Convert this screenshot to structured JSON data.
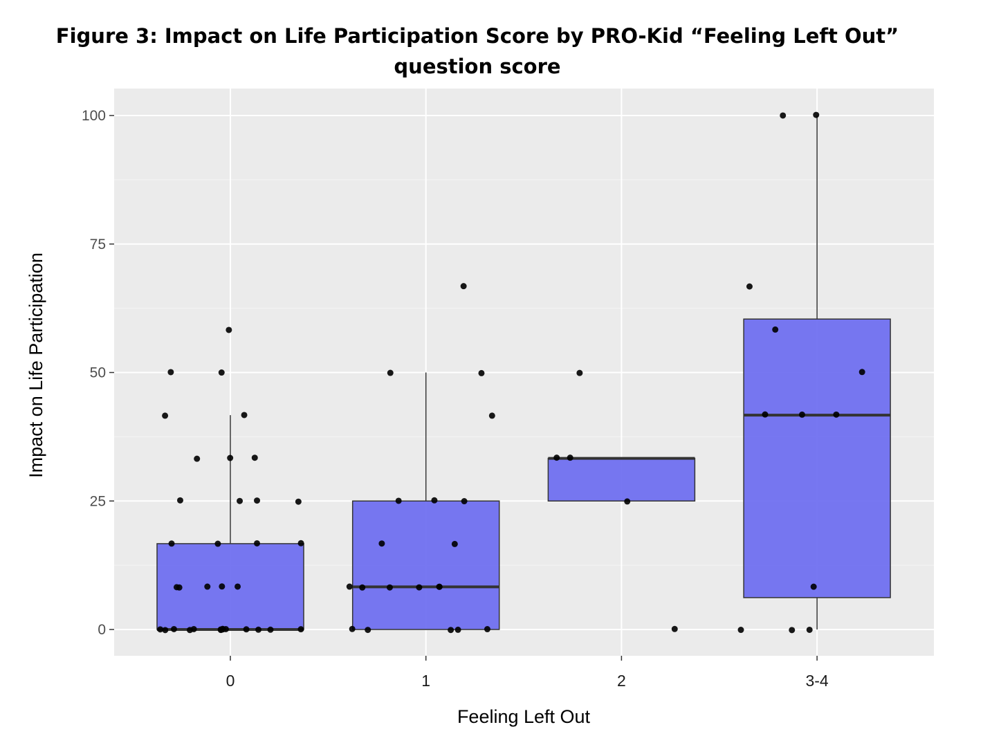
{
  "figure": {
    "title": "Figure 3: Impact on Life Participation Score by PRO-Kid “Feeling Left Out” question score"
  },
  "chart_data": {
    "type": "box",
    "xlabel": "Feeling Left Out",
    "ylabel": "Impact on Life Participation",
    "categories": [
      "0",
      "1",
      "2",
      "3-4"
    ],
    "ylim": [
      -5,
      105
    ],
    "yticks": [
      0,
      25,
      50,
      75,
      100
    ],
    "grid": true,
    "colors": {
      "box_fill": "#7070f0",
      "box_border": "#333333",
      "panel": "#ebebeb",
      "grid": "#ffffff",
      "point": "#000000"
    },
    "boxes": [
      {
        "category": "0",
        "whisker_low": 0,
        "q1": 0,
        "median": 0,
        "q3": 16.7,
        "whisker_high": 41.7
      },
      {
        "category": "1",
        "whisker_low": 0,
        "q1": 0,
        "median": 8.3,
        "q3": 25,
        "whisker_high": 50
      },
      {
        "category": "2",
        "whisker_low": 25,
        "q1": 25,
        "median": 33.3,
        "q3": 33.3,
        "whisker_high": 33.3
      },
      {
        "category": "3-4",
        "whisker_low": 0,
        "q1": 6.2,
        "median": 41.7,
        "q3": 60.4,
        "whisker_high": 100
      }
    ],
    "points": [
      {
        "x": "0",
        "y": 58.3
      },
      {
        "x": "0",
        "y": 50
      },
      {
        "x": "0",
        "y": 50
      },
      {
        "x": "0",
        "y": 41.7
      },
      {
        "x": "0",
        "y": 41.7
      },
      {
        "x": "0",
        "y": 33.3
      },
      {
        "x": "0",
        "y": 33.3
      },
      {
        "x": "0",
        "y": 33.3
      },
      {
        "x": "0",
        "y": 25
      },
      {
        "x": "0",
        "y": 25
      },
      {
        "x": "0",
        "y": 25
      },
      {
        "x": "0",
        "y": 25
      },
      {
        "x": "0",
        "y": 16.7
      },
      {
        "x": "0",
        "y": 16.7
      },
      {
        "x": "0",
        "y": 16.7
      },
      {
        "x": "0",
        "y": 16.7
      },
      {
        "x": "0",
        "y": 8.3
      },
      {
        "x": "0",
        "y": 8.3
      },
      {
        "x": "0",
        "y": 8.3
      },
      {
        "x": "0",
        "y": 8.3
      },
      {
        "x": "0",
        "y": 8.3
      },
      {
        "x": "0",
        "y": 0
      },
      {
        "x": "0",
        "y": 0
      },
      {
        "x": "0",
        "y": 0
      },
      {
        "x": "0",
        "y": 0
      },
      {
        "x": "0",
        "y": 0
      },
      {
        "x": "0",
        "y": 0
      },
      {
        "x": "0",
        "y": 0
      },
      {
        "x": "0",
        "y": 0
      },
      {
        "x": "0",
        "y": 0
      },
      {
        "x": "0",
        "y": 0
      },
      {
        "x": "0",
        "y": 0
      },
      {
        "x": "0",
        "y": 0
      },
      {
        "x": "0",
        "y": 0
      },
      {
        "x": "0",
        "y": 0
      },
      {
        "x": "1",
        "y": 66.7
      },
      {
        "x": "1",
        "y": 50
      },
      {
        "x": "1",
        "y": 50
      },
      {
        "x": "1",
        "y": 41.7
      },
      {
        "x": "1",
        "y": 25
      },
      {
        "x": "1",
        "y": 25
      },
      {
        "x": "1",
        "y": 25
      },
      {
        "x": "1",
        "y": 16.7
      },
      {
        "x": "1",
        "y": 16.7
      },
      {
        "x": "1",
        "y": 8.3
      },
      {
        "x": "1",
        "y": 8.3
      },
      {
        "x": "1",
        "y": 8.3
      },
      {
        "x": "1",
        "y": 8.3
      },
      {
        "x": "1",
        "y": 8.3
      },
      {
        "x": "1",
        "y": 8.3
      },
      {
        "x": "1",
        "y": 0
      },
      {
        "x": "1",
        "y": 0
      },
      {
        "x": "1",
        "y": 0
      },
      {
        "x": "1",
        "y": 0
      },
      {
        "x": "1",
        "y": 0
      },
      {
        "x": "2",
        "y": 50
      },
      {
        "x": "2",
        "y": 33.3
      },
      {
        "x": "2",
        "y": 33.3
      },
      {
        "x": "2",
        "y": 25
      },
      {
        "x": "2",
        "y": 0
      },
      {
        "x": "3-4",
        "y": 100
      },
      {
        "x": "3-4",
        "y": 100
      },
      {
        "x": "3-4",
        "y": 66.7
      },
      {
        "x": "3-4",
        "y": 58.3
      },
      {
        "x": "3-4",
        "y": 50
      },
      {
        "x": "3-4",
        "y": 41.7
      },
      {
        "x": "3-4",
        "y": 41.7
      },
      {
        "x": "3-4",
        "y": 41.7
      },
      {
        "x": "3-4",
        "y": 8.3
      },
      {
        "x": "3-4",
        "y": 0
      },
      {
        "x": "3-4",
        "y": 0
      },
      {
        "x": "3-4",
        "y": 0
      }
    ]
  }
}
